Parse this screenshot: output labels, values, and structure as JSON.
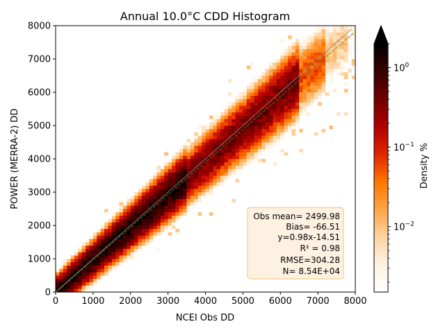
{
  "chart_data": {
    "type": "heatmap",
    "title": "Annual 10.0°C CDD Histogram",
    "xlabel": "NCEI Obs DD",
    "ylabel": "POWER (MERRA-2) DD",
    "xlim": [
      0,
      8000
    ],
    "ylim": [
      0,
      8000
    ],
    "xticks": [
      0,
      1000,
      2000,
      3000,
      4000,
      5000,
      6000,
      7000,
      8000
    ],
    "yticks": [
      0,
      1000,
      2000,
      3000,
      4000,
      5000,
      6000,
      7000,
      8000
    ],
    "xtick_labels": [
      "0",
      "1000",
      "2000",
      "3000",
      "4000",
      "5000",
      "6000",
      "7000",
      "8000"
    ],
    "ytick_labels": [
      "0",
      "1000",
      "2000",
      "3000",
      "4000",
      "5000",
      "6000",
      "7000",
      "8000"
    ],
    "grid": false,
    "bin_size": 100,
    "regression": {
      "slope": 0.98,
      "intercept": -14.51
    },
    "one_to_one_line": true,
    "stats": {
      "lines": [
        "Obs mean= 2499.98",
        "Bias= -66.51",
        "y=0.98x-14.51",
        "R² = 0.98",
        "RMSE=304.28",
        "N= 8.54E+04"
      ],
      "placement": "lower-right",
      "box_color": "#fdf1e2",
      "border_color": "#f6c27a"
    },
    "colorbar": {
      "label": "Density %",
      "scale": "log",
      "range": [
        0.0015,
        2.0
      ],
      "ticks": [
        {
          "value": 1,
          "label": "10",
          "exp": "0"
        },
        {
          "value": 0.1,
          "label": "10",
          "exp": "−1"
        },
        {
          "value": 0.01,
          "label": "10",
          "exp": "−2"
        }
      ],
      "extend": "max",
      "cmap": [
        "#ffffff",
        "#fff2e0",
        "#ffd3a1",
        "#ffa545",
        "#ff7600",
        "#e12400",
        "#b00000",
        "#700000",
        "#380000",
        "#000000"
      ]
    }
  }
}
